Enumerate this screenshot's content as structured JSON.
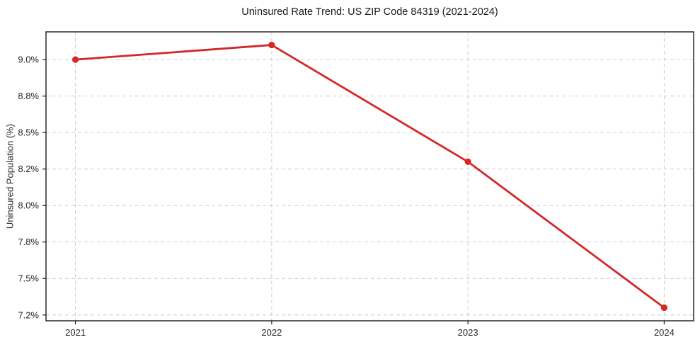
{
  "figure": {
    "title": "Uninsured Rate Trend: US ZIP Code 84319 (2021-2024)",
    "ylabel": "Uninsured Population (%)"
  },
  "colors": {
    "line": "#d62728",
    "marker": "#d62728",
    "grid": "#c9c9c9",
    "spine": "#1a1a1a",
    "tick_text": "#262626",
    "background": "#ffffff"
  },
  "chart_data": {
    "type": "line",
    "title": "Uninsured Rate Trend: US ZIP Code 84319 (2021-2024)",
    "xlabel": "",
    "ylabel": "Uninsured Population (%)",
    "x": [
      2021,
      2022,
      2023,
      2024
    ],
    "series": [
      {
        "name": "Uninsured Population (%)",
        "values": [
          9.0,
          9.1,
          8.3,
          7.3
        ],
        "color": "#d62728",
        "marker": "circle"
      }
    ],
    "x_tick_labels": [
      "2021",
      "2022",
      "2023",
      "2024"
    ],
    "y_ticks": [
      9.0,
      8.75,
      8.5,
      8.25,
      8.0,
      7.75,
      7.5,
      7.25
    ],
    "y_tick_labels": [
      "9.0%",
      "8.8%",
      "8.5%",
      "8.2%",
      "8.0%",
      "7.8%",
      "7.5%",
      "7.2%"
    ],
    "xlim": [
      2020.85,
      2024.15
    ],
    "ylim": [
      7.21,
      9.19
    ],
    "grid": "both-dashed",
    "legend": "none"
  }
}
